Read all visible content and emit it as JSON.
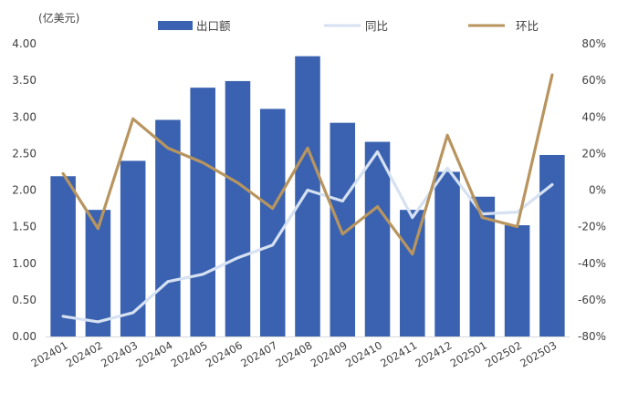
{
  "chart_data": {
    "type": "bar",
    "unit_label": "(亿美元)",
    "categories": [
      "202401",
      "202402",
      "202403",
      "202404",
      "202405",
      "202406",
      "202407",
      "202408",
      "202409",
      "202410",
      "202411",
      "202412",
      "202501",
      "202502",
      "202503"
    ],
    "series": [
      {
        "name": "出口额",
        "type": "bar",
        "axis": "left",
        "color": "#3a62b0",
        "values": [
          2.19,
          1.73,
          2.4,
          2.96,
          3.4,
          3.49,
          3.11,
          3.83,
          2.92,
          2.66,
          1.73,
          2.25,
          1.91,
          1.52,
          2.48
        ]
      },
      {
        "name": "同比",
        "type": "line",
        "axis": "right",
        "color": "#d6e1f1",
        "unit": "%",
        "values": [
          -69,
          -72,
          -67,
          -50,
          -46,
          -37,
          -30,
          0,
          -6,
          21,
          -15,
          12,
          -13,
          -12,
          3
        ]
      },
      {
        "name": "环比",
        "type": "line",
        "axis": "right",
        "color": "#b8955f",
        "unit": "%",
        "values": [
          9,
          -21,
          39,
          23,
          15,
          4,
          -10,
          23,
          -24,
          -9,
          -35,
          30,
          -15,
          -20,
          63
        ]
      }
    ],
    "y_left": {
      "min": 0,
      "max": 4,
      "step": 0.5,
      "decimals": 2
    },
    "y_right": {
      "min": -80,
      "max": 80,
      "step": 20,
      "format": "percent"
    },
    "legend": {
      "position": "top"
    },
    "grid": false
  }
}
